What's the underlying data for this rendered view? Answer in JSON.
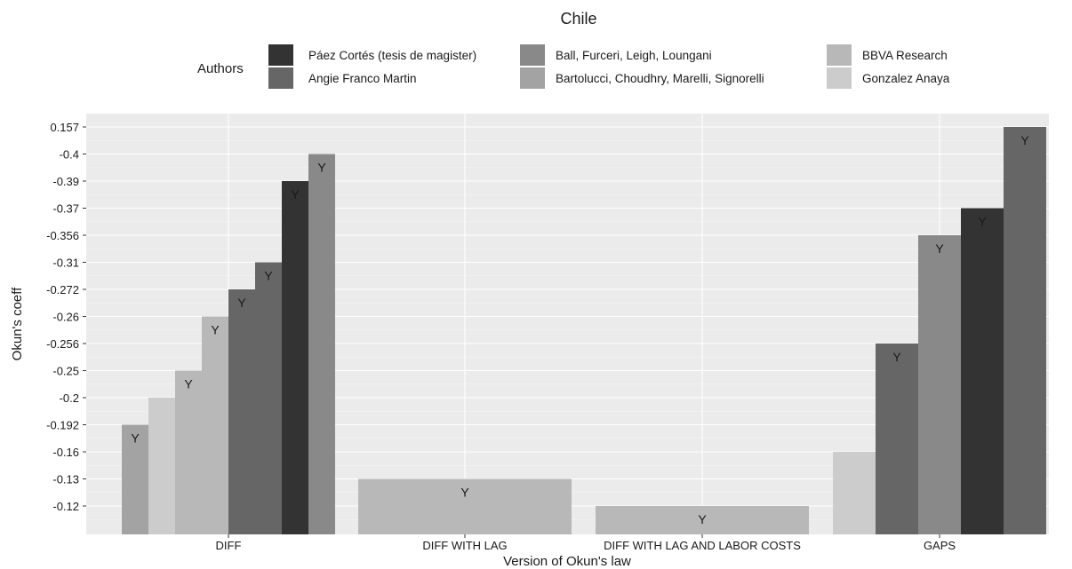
{
  "chart_data": {
    "type": "bar",
    "title": "Chile",
    "xlabel": "Version of Okun's law",
    "ylabel": "Okun's coeff",
    "grid": true,
    "legend": {
      "title": "Authors",
      "position": "top",
      "entries": [
        {
          "name": "Páez Cortés (tesis de magister)",
          "color": "#333333"
        },
        {
          "name": "Angie Franco Martin",
          "color": "#666666"
        },
        {
          "name": "Ball, Furceri, Leigh, Loungani",
          "color": "#898989"
        },
        {
          "name": "Bartolucci,  Choudhry, Marelli, Signorelli",
          "color": "#a3a3a3"
        },
        {
          "name": "BBVA Research",
          "color": "#b8b8b8"
        },
        {
          "name": "Gonzalez Anaya",
          "color": "#cccccc"
        }
      ]
    },
    "y_ticks": [
      "-0.12",
      "-0.13",
      "-0.16",
      "-0.192",
      "-0.2",
      "-0.25",
      "-0.256",
      "-0.26",
      "-0.272",
      "-0.31",
      "-0.356",
      "-0.37",
      "-0.39",
      "-0.4",
      "0.157"
    ],
    "categories": [
      "DIFF",
      "DIFF WITH LAG",
      "DIFF WITH LAG AND LABOR COSTS",
      "GAPS"
    ],
    "groups": [
      {
        "category": "DIFF",
        "bars": [
          {
            "value": "-0.192",
            "color": "#a3a3a3",
            "label": "Y"
          },
          {
            "value": "-0.2",
            "color": "#cccccc",
            "label": ""
          },
          {
            "value": "-0.25",
            "color": "#b8b8b8",
            "label": "Y"
          },
          {
            "value": "-0.26",
            "color": "#b8b8b8",
            "label": "Y"
          },
          {
            "value": "-0.272",
            "color": "#666666",
            "label": "Y"
          },
          {
            "value": "-0.31",
            "color": "#666666",
            "label": "Y"
          },
          {
            "value": "-0.39",
            "color": "#333333",
            "label": "Y"
          },
          {
            "value": "-0.4",
            "color": "#898989",
            "label": "Y"
          }
        ]
      },
      {
        "category": "DIFF WITH LAG",
        "bars": [
          {
            "value": "-0.13",
            "color": "#b8b8b8",
            "label": "Y"
          }
        ]
      },
      {
        "category": "DIFF WITH LAG AND LABOR COSTS",
        "bars": [
          {
            "value": "-0.12",
            "color": "#b8b8b8",
            "label": "Y"
          }
        ]
      },
      {
        "category": "GAPS",
        "bars": [
          {
            "value": "-0.16",
            "color": "#cccccc",
            "label": ""
          },
          {
            "value": "-0.256",
            "color": "#666666",
            "label": "Y"
          },
          {
            "value": "-0.356",
            "color": "#898989",
            "label": "Y"
          },
          {
            "value": "-0.37",
            "color": "#333333",
            "label": "Y"
          },
          {
            "value": "0.157",
            "color": "#666666",
            "label": "Y"
          }
        ]
      }
    ]
  }
}
